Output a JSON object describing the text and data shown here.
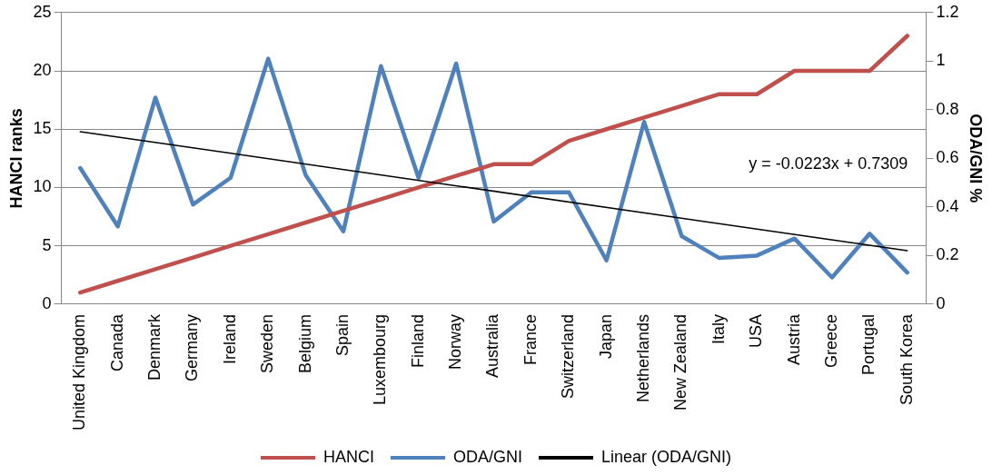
{
  "chart_data": {
    "type": "line",
    "ylabel": "HANCI ranks",
    "y2label": "ODA/GNI %",
    "categories": [
      "United Kingdom",
      "Canada",
      "Denmark",
      "Germany",
      "Ireland",
      "Sweden",
      "Belgium",
      "Spain",
      "Luxembourg",
      "Finland",
      "Norway",
      "Australia",
      "France",
      "Switzerland",
      "Japan",
      "Netherlands",
      "New Zealand",
      "Italy",
      "USA",
      "Austria",
      "Greece",
      "Portugal",
      "South Korea"
    ],
    "series": [
      {
        "name": "HANCI",
        "color": "#c0504d",
        "values": [
          1,
          2,
          3,
          4,
          5,
          6,
          7,
          8,
          9,
          10,
          11,
          12,
          12,
          14,
          15,
          16,
          17,
          18,
          18,
          20,
          20,
          20,
          23
        ]
      },
      {
        "name": "ODA/GNI",
        "color": "#4f81bd",
        "axis": "y2",
        "values": [
          0.56,
          0.32,
          0.85,
          0.41,
          0.52,
          1.01,
          0.53,
          0.3,
          0.98,
          0.52,
          0.99,
          0.34,
          0.46,
          0.46,
          0.18,
          0.75,
          0.28,
          0.19,
          0.2,
          0.27,
          0.11,
          0.29,
          0.13
        ]
      },
      {
        "name": "Linear (ODA/GNI)",
        "color": "#000000",
        "axis": "y2",
        "x": [
          "United Kingdom",
          "South Korea"
        ],
        "values": [
          0.71,
          0.22
        ]
      }
    ],
    "ylim": [
      0,
      25
    ],
    "yticks": [
      0,
      5,
      10,
      15,
      20,
      25
    ],
    "y2lim": [
      0,
      1.2
    ],
    "y2ticks": [
      0,
      0.2,
      0.4,
      0.6,
      0.8,
      1,
      1.2
    ],
    "grid": "y",
    "legend": "bottom",
    "marker": "none",
    "annotations": [
      "y = -0.0223x + 0.7309"
    ]
  }
}
